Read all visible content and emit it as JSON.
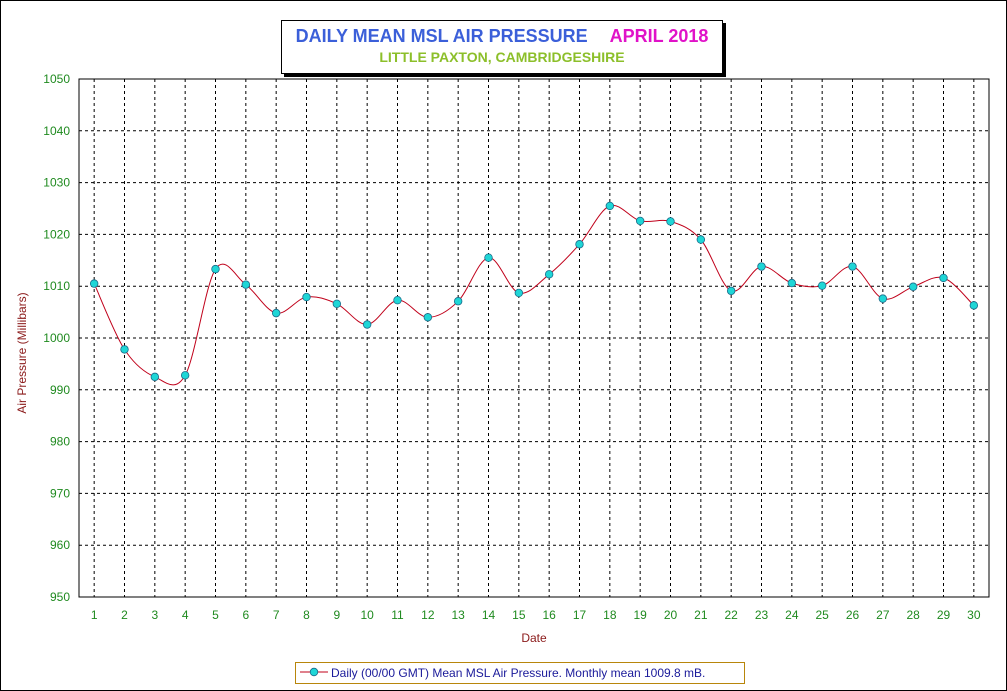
{
  "title": {
    "main": "DAILY MEAN MSL AIR PRESSURE",
    "month": "APRIL 2018",
    "subtitle": "LITTLE PAXTON, CAMBRIDGESHIRE"
  },
  "legend": {
    "label": "Daily (00/00 GMT) Mean MSL Air Pressure. Monthly mean 1009.8 mB."
  },
  "colors": {
    "line": "#c0001a",
    "marker_fill": "#1fd6d6",
    "marker_stroke": "#1a6a8a",
    "grid": "#000000",
    "tick_label": "#1f8a1f",
    "axis_title": "#8b1a1a"
  },
  "chart_data": {
    "type": "line",
    "xlabel": "Date",
    "ylabel": "Air Pressure (Millibars)",
    "ylim": [
      950,
      1050
    ],
    "yticks": [
      950,
      960,
      970,
      980,
      990,
      1000,
      1010,
      1020,
      1030,
      1040,
      1050
    ],
    "grid": true,
    "legend_position": "bottom",
    "smoothed": true,
    "x": [
      1,
      2,
      3,
      4,
      5,
      6,
      7,
      8,
      9,
      10,
      11,
      12,
      13,
      14,
      15,
      16,
      17,
      18,
      19,
      20,
      21,
      22,
      23,
      24,
      25,
      26,
      27,
      28,
      29,
      30
    ],
    "series": [
      {
        "name": "Daily (00/00 GMT) Mean MSL Air Pressure. Monthly mean 1009.8 mB.",
        "values": [
          1010.5,
          997.8,
          992.5,
          992.8,
          1013.3,
          1010.3,
          1004.8,
          1007.9,
          1006.6,
          1002.6,
          1007.3,
          1004.0,
          1007.1,
          1015.5,
          1008.7,
          1012.3,
          1018.1,
          1025.5,
          1022.6,
          1022.5,
          1019.0,
          1009.1,
          1013.8,
          1010.6,
          1010.1,
          1013.8,
          1007.6,
          1009.9,
          1011.6,
          1006.3
        ]
      }
    ]
  }
}
